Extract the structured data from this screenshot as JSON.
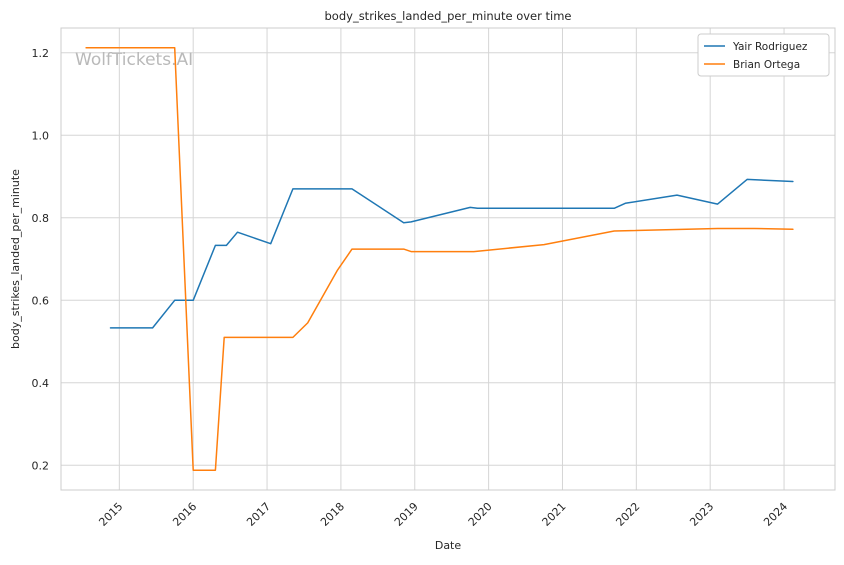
{
  "chart_data": {
    "type": "line",
    "title": "body_strikes_landed_per_minute over time",
    "xlabel": "Date",
    "ylabel": "body_strikes_landed_per_minute",
    "watermark": "WolfTickets.AI",
    "xlim": [
      2014.21,
      2024.69
    ],
    "ylim": [
      0.14,
      1.26
    ],
    "x_ticks": [
      2015,
      2016,
      2017,
      2018,
      2019,
      2020,
      2021,
      2022,
      2023,
      2024
    ],
    "x_tick_labels": [
      "2015",
      "2016",
      "2017",
      "2018",
      "2019",
      "2020",
      "2021",
      "2022",
      "2023",
      "2024"
    ],
    "y_ticks": [
      0.2,
      0.4,
      0.6,
      0.8,
      1.0,
      1.2
    ],
    "y_tick_labels": [
      "0.2",
      "0.4",
      "0.6",
      "0.8",
      "1.0",
      "1.2"
    ],
    "grid": true,
    "legend_position": "top-right",
    "series": [
      {
        "name": "Yair Rodriguez",
        "color": "#1f77b4",
        "points": [
          [
            2014.88,
            0.533
          ],
          [
            2015.45,
            0.533
          ],
          [
            2015.75,
            0.6
          ],
          [
            2016.0,
            0.6
          ],
          [
            2016.3,
            0.733
          ],
          [
            2016.45,
            0.733
          ],
          [
            2016.6,
            0.765
          ],
          [
            2017.05,
            0.737
          ],
          [
            2017.35,
            0.87
          ],
          [
            2018.15,
            0.87
          ],
          [
            2018.85,
            0.788
          ],
          [
            2018.95,
            0.79
          ],
          [
            2019.75,
            0.825
          ],
          [
            2019.85,
            0.823
          ],
          [
            2021.7,
            0.823
          ],
          [
            2021.85,
            0.835
          ],
          [
            2022.55,
            0.855
          ],
          [
            2023.1,
            0.833
          ],
          [
            2023.5,
            0.893
          ],
          [
            2024.12,
            0.888
          ]
        ]
      },
      {
        "name": "Brian Ortega",
        "color": "#ff7f0e",
        "points": [
          [
            2014.55,
            1.212
          ],
          [
            2015.75,
            1.212
          ],
          [
            2016.0,
            0.188
          ],
          [
            2016.3,
            0.188
          ],
          [
            2016.42,
            0.51
          ],
          [
            2017.35,
            0.51
          ],
          [
            2017.55,
            0.545
          ],
          [
            2017.95,
            0.672
          ],
          [
            2018.15,
            0.724
          ],
          [
            2018.85,
            0.724
          ],
          [
            2018.95,
            0.718
          ],
          [
            2019.8,
            0.718
          ],
          [
            2020.75,
            0.735
          ],
          [
            2021.7,
            0.768
          ],
          [
            2023.1,
            0.774
          ],
          [
            2023.6,
            0.774
          ],
          [
            2024.12,
            0.772
          ]
        ]
      }
    ]
  }
}
